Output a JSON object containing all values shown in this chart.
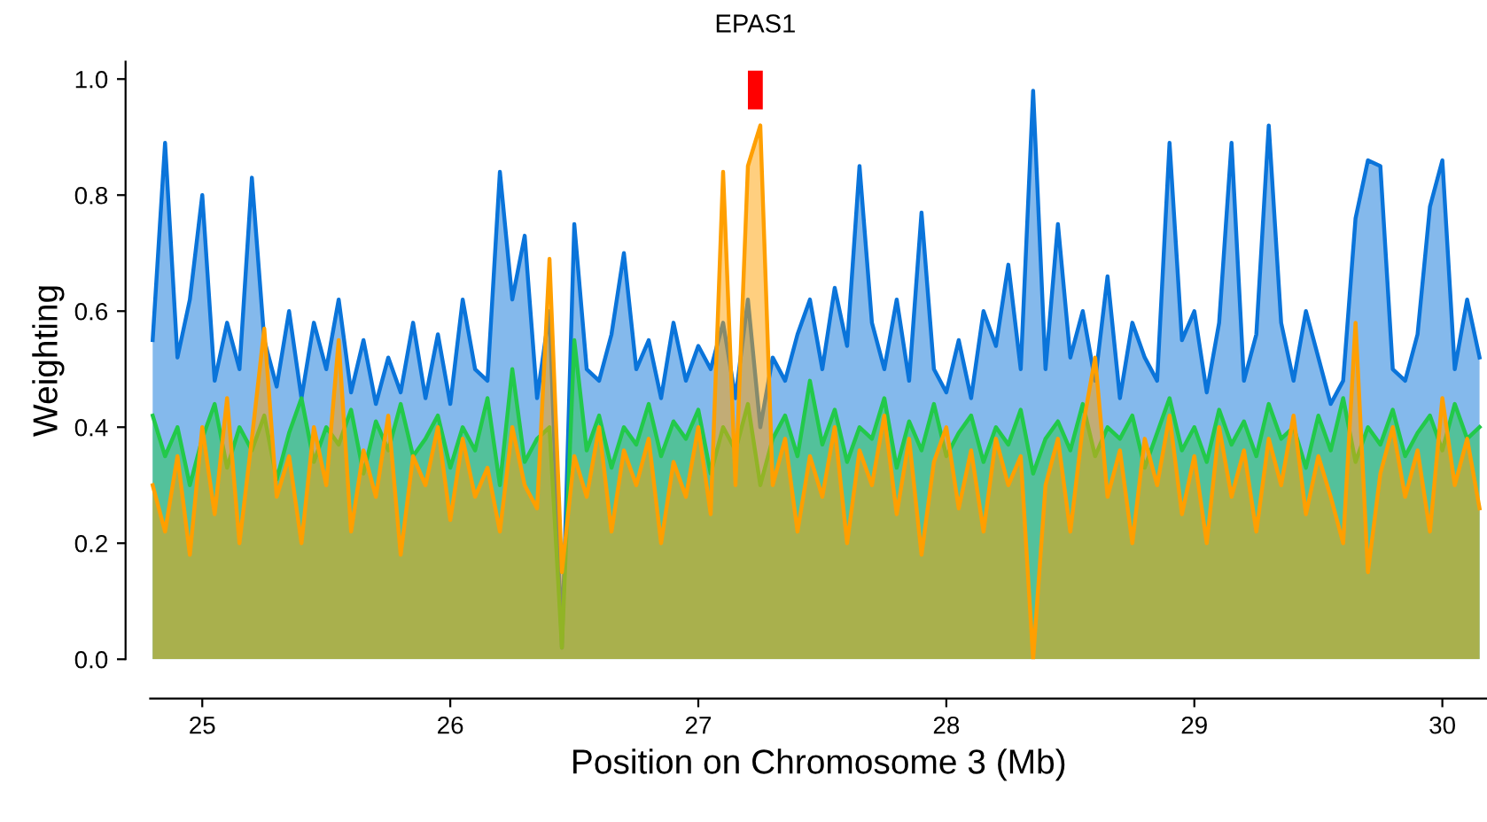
{
  "chart_data": {
    "type": "area",
    "xlabel": "Position on Chromosome 3 (Mb)",
    "ylabel": "Weighting",
    "x": [
      24.8,
      24.85,
      24.9,
      24.95,
      25.0,
      25.05,
      25.1,
      25.15,
      25.2,
      25.25,
      25.3,
      25.35,
      25.4,
      25.45,
      25.5,
      25.55,
      25.6,
      25.65,
      25.7,
      25.75,
      25.8,
      25.85,
      25.9,
      25.95,
      26.0,
      26.05,
      26.1,
      26.15,
      26.2,
      26.25,
      26.3,
      26.35,
      26.4,
      26.45,
      26.5,
      26.55,
      26.6,
      26.65,
      26.7,
      26.75,
      26.8,
      26.85,
      26.9,
      26.95,
      27.0,
      27.05,
      27.1,
      27.15,
      27.2,
      27.25,
      27.3,
      27.35,
      27.4,
      27.45,
      27.5,
      27.55,
      27.6,
      27.65,
      27.7,
      27.75,
      27.8,
      27.85,
      27.9,
      27.95,
      28.0,
      28.05,
      28.1,
      28.15,
      28.2,
      28.25,
      28.3,
      28.35,
      28.4,
      28.45,
      28.5,
      28.55,
      28.6,
      28.65,
      28.7,
      28.75,
      28.8,
      28.85,
      28.9,
      28.95,
      29.0,
      29.05,
      29.1,
      29.15,
      29.2,
      29.25,
      29.3,
      29.35,
      29.4,
      29.45,
      29.5,
      29.55,
      29.6,
      29.65,
      29.7,
      29.75,
      29.8,
      29.85,
      29.9,
      29.95,
      30.0,
      30.05,
      30.1,
      30.15
    ],
    "series": [
      {
        "color": "#0a74da",
        "values": [
          0.55,
          0.89,
          0.52,
          0.62,
          0.8,
          0.48,
          0.58,
          0.5,
          0.83,
          0.55,
          0.47,
          0.6,
          0.45,
          0.58,
          0.5,
          0.62,
          0.46,
          0.55,
          0.44,
          0.52,
          0.46,
          0.58,
          0.45,
          0.56,
          0.44,
          0.62,
          0.5,
          0.48,
          0.84,
          0.62,
          0.73,
          0.45,
          0.6,
          0.02,
          0.75,
          0.5,
          0.48,
          0.56,
          0.7,
          0.5,
          0.55,
          0.45,
          0.58,
          0.48,
          0.54,
          0.5,
          0.58,
          0.45,
          0.62,
          0.4,
          0.52,
          0.48,
          0.56,
          0.62,
          0.5,
          0.64,
          0.54,
          0.85,
          0.58,
          0.5,
          0.62,
          0.48,
          0.77,
          0.5,
          0.46,
          0.55,
          0.45,
          0.6,
          0.54,
          0.68,
          0.5,
          0.98,
          0.5,
          0.75,
          0.52,
          0.6,
          0.48,
          0.66,
          0.45,
          0.58,
          0.52,
          0.48,
          0.89,
          0.55,
          0.6,
          0.46,
          0.58,
          0.89,
          0.48,
          0.56,
          0.92,
          0.58,
          0.48,
          0.6,
          0.52,
          0.44,
          0.48,
          0.76,
          0.86,
          0.85,
          0.5,
          0.48,
          0.56,
          0.78,
          0.86,
          0.5,
          0.62,
          0.52
        ]
      },
      {
        "color": "#22c94a",
        "values": [
          0.42,
          0.35,
          0.4,
          0.3,
          0.38,
          0.44,
          0.33,
          0.4,
          0.36,
          0.42,
          0.31,
          0.39,
          0.45,
          0.34,
          0.4,
          0.37,
          0.43,
          0.32,
          0.41,
          0.36,
          0.44,
          0.35,
          0.38,
          0.42,
          0.33,
          0.4,
          0.36,
          0.45,
          0.3,
          0.5,
          0.34,
          0.38,
          0.4,
          0.02,
          0.55,
          0.36,
          0.42,
          0.33,
          0.4,
          0.37,
          0.44,
          0.35,
          0.41,
          0.38,
          0.43,
          0.32,
          0.4,
          0.36,
          0.44,
          0.3,
          0.38,
          0.42,
          0.35,
          0.48,
          0.37,
          0.43,
          0.34,
          0.4,
          0.38,
          0.45,
          0.33,
          0.41,
          0.36,
          0.44,
          0.35,
          0.39,
          0.42,
          0.34,
          0.4,
          0.37,
          0.43,
          0.32,
          0.38,
          0.41,
          0.36,
          0.44,
          0.35,
          0.4,
          0.38,
          0.42,
          0.33,
          0.39,
          0.45,
          0.36,
          0.4,
          0.34,
          0.43,
          0.37,
          0.41,
          0.35,
          0.44,
          0.38,
          0.4,
          0.33,
          0.42,
          0.36,
          0.45,
          0.34,
          0.4,
          0.37,
          0.43,
          0.35,
          0.39,
          0.42,
          0.36,
          0.44,
          0.38,
          0.4
        ]
      },
      {
        "color": "#ff9f00",
        "values": [
          0.3,
          0.22,
          0.35,
          0.18,
          0.4,
          0.25,
          0.45,
          0.2,
          0.38,
          0.57,
          0.28,
          0.35,
          0.2,
          0.4,
          0.3,
          0.55,
          0.22,
          0.36,
          0.28,
          0.42,
          0.18,
          0.35,
          0.3,
          0.4,
          0.24,
          0.38,
          0.28,
          0.33,
          0.22,
          0.4,
          0.3,
          0.26,
          0.69,
          0.15,
          0.35,
          0.28,
          0.4,
          0.22,
          0.36,
          0.3,
          0.38,
          0.2,
          0.34,
          0.28,
          0.4,
          0.25,
          0.84,
          0.3,
          0.85,
          0.92,
          0.3,
          0.38,
          0.22,
          0.35,
          0.28,
          0.4,
          0.2,
          0.36,
          0.3,
          0.42,
          0.25,
          0.38,
          0.18,
          0.34,
          0.4,
          0.26,
          0.36,
          0.22,
          0.38,
          0.3,
          0.35,
          0.0,
          0.3,
          0.38,
          0.22,
          0.4,
          0.52,
          0.28,
          0.36,
          0.2,
          0.38,
          0.3,
          0.42,
          0.25,
          0.35,
          0.2,
          0.4,
          0.28,
          0.36,
          0.22,
          0.38,
          0.3,
          0.42,
          0.25,
          0.35,
          0.28,
          0.2,
          0.58,
          0.15,
          0.32,
          0.4,
          0.28,
          0.36,
          0.22,
          0.45,
          0.3,
          0.38,
          0.26
        ]
      }
    ],
    "xlim": [
      24.79,
      30.18
    ],
    "ylim": [
      0,
      1.03
    ],
    "xticks": [
      25,
      26,
      27,
      28,
      29,
      30
    ],
    "yticks": [
      {
        "value": 0,
        "label": "0.0"
      },
      {
        "value": 0.2,
        "label": "0.2"
      },
      {
        "value": 0.4,
        "label": "0.4"
      },
      {
        "value": 0.6,
        "label": "0.6"
      },
      {
        "value": 0.8,
        "label": "0.8"
      },
      {
        "value": 1.0,
        "label": "1.0"
      }
    ],
    "bands": [
      {
        "axis": "x",
        "from": 27.2,
        "to": 27.26,
        "label": "EPAS1",
        "color": "#ff0000"
      }
    ],
    "grid": false
  }
}
